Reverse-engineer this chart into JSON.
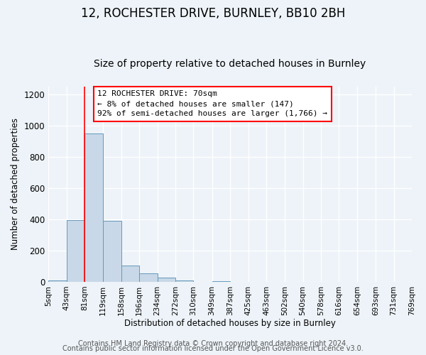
{
  "title": "12, ROCHESTER DRIVE, BURNLEY, BB10 2BH",
  "subtitle": "Size of property relative to detached houses in Burnley",
  "xlabel": "Distribution of detached houses by size in Burnley",
  "ylabel": "Number of detached properties",
  "footer_lines": [
    "Contains HM Land Registry data © Crown copyright and database right 2024.",
    "Contains public sector information licensed under the Open Government Licence v3.0."
  ],
  "bar_left_edges": [
    5,
    43,
    81,
    119,
    158,
    196,
    234,
    272,
    310,
    349,
    387,
    425,
    463,
    502,
    540,
    578,
    616,
    654,
    693,
    731
  ],
  "bar_widths": [
    38,
    38,
    38,
    39,
    38,
    38,
    38,
    38,
    39,
    38,
    38,
    38,
    39,
    38,
    38,
    38,
    38,
    39,
    38,
    38
  ],
  "bar_heights": [
    10,
    395,
    950,
    390,
    105,
    55,
    25,
    10,
    0,
    5,
    0,
    0,
    0,
    0,
    0,
    0,
    0,
    0,
    0,
    0
  ],
  "bar_color": "#c8d8e8",
  "bar_edgecolor": "#6699bb",
  "tick_labels": [
    "5sqm",
    "43sqm",
    "81sqm",
    "119sqm",
    "158sqm",
    "196sqm",
    "234sqm",
    "272sqm",
    "310sqm",
    "349sqm",
    "387sqm",
    "425sqm",
    "463sqm",
    "502sqm",
    "540sqm",
    "578sqm",
    "616sqm",
    "654sqm",
    "693sqm",
    "731sqm",
    "769sqm"
  ],
  "ylim": [
    0,
    1250
  ],
  "yticks": [
    0,
    200,
    400,
    600,
    800,
    1000,
    1200
  ],
  "red_line_x": 81,
  "annotation_line1": "12 ROCHESTER DRIVE: 70sqm",
  "annotation_line2": "← 8% of detached houses are smaller (147)",
  "annotation_line3": "92% of semi-detached houses are larger (1,766) →",
  "bg_color": "#edf3f8",
  "plot_bg_color": "#edf3f8",
  "grid_color": "#ffffff",
  "title_fontsize": 12,
  "subtitle_fontsize": 10,
  "footer_fontsize": 7,
  "axis_label_fontsize": 8.5,
  "tick_fontsize": 7.5,
  "ytick_fontsize": 8.5
}
